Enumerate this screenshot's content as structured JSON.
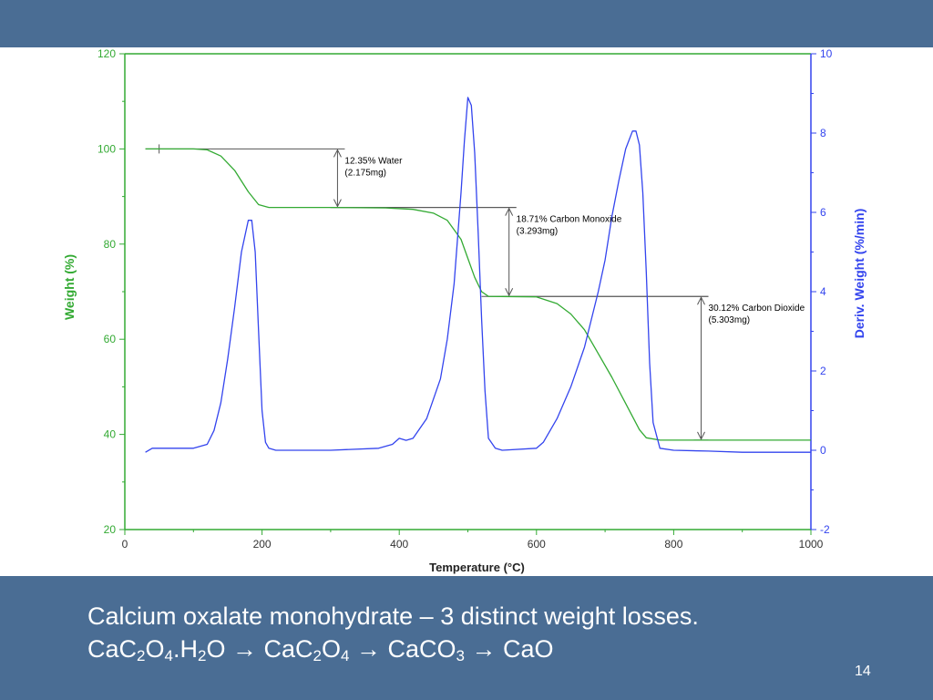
{
  "slide": {
    "caption_line1": "Calcium oxalate monohydrate – 3 distinct weight losses.",
    "formula_parts": [
      "CaC",
      "2",
      "O",
      "4",
      ".H",
      "2",
      "O ",
      "→",
      " CaC",
      "2",
      "O",
      "4",
      " ",
      "→",
      " CaCO",
      "3",
      " ",
      "→",
      " CaO"
    ],
    "slide_number": "14",
    "colors": {
      "band": "#4a6d94",
      "text": "#ffffff"
    }
  },
  "chart_data": {
    "type": "line",
    "title": "",
    "xlabel": "Temperature (°C)",
    "ylabel_left": "Weight (%)",
    "ylabel_right": "Deriv. Weight (%/min)",
    "xlim": [
      0,
      1000
    ],
    "ylim_left": [
      20,
      120
    ],
    "ylim_right": [
      -2,
      10
    ],
    "x_ticks": [
      "0",
      "200",
      "400",
      "600",
      "800",
      "1000"
    ],
    "y_left_ticks": [
      "20",
      "40",
      "60",
      "80",
      "100",
      "120"
    ],
    "y_right_ticks": [
      "-2",
      "0",
      "2",
      "4",
      "6",
      "8",
      "10"
    ],
    "grid": false,
    "colors": {
      "weight": "#33aa33",
      "deriv": "#3344ee",
      "axis_left": "#33aa33",
      "axis_right": "#3344ee",
      "annotation": "#000000"
    },
    "series": [
      {
        "name": "Weight (%)",
        "axis": "left",
        "x": [
          30,
          100,
          120,
          140,
          160,
          180,
          195,
          210,
          300,
          380,
          420,
          450,
          470,
          490,
          500,
          510,
          520,
          530,
          600,
          630,
          650,
          670,
          690,
          710,
          730,
          750,
          760,
          780,
          1000
        ],
        "y": [
          100,
          100,
          99.8,
          98.5,
          95.5,
          91,
          88.3,
          87.7,
          87.7,
          87.6,
          87.3,
          86.5,
          85,
          81,
          77,
          73,
          70,
          69,
          68.9,
          67.5,
          65.3,
          62,
          57,
          52,
          46.5,
          41,
          39.3,
          38.8,
          38.8
        ]
      },
      {
        "name": "Deriv. Weight (%/min)",
        "axis": "right",
        "x": [
          30,
          40,
          50,
          100,
          120,
          130,
          140,
          150,
          160,
          170,
          180,
          185,
          190,
          195,
          200,
          205,
          210,
          220,
          300,
          370,
          390,
          400,
          410,
          420,
          440,
          460,
          470,
          480,
          490,
          495,
          500,
          505,
          510,
          515,
          520,
          525,
          530,
          540,
          550,
          600,
          610,
          630,
          650,
          670,
          690,
          700,
          710,
          720,
          730,
          740,
          745,
          750,
          755,
          760,
          765,
          770,
          780,
          800,
          850,
          900,
          1000
        ],
        "y": [
          -0.05,
          0.05,
          0.05,
          0.05,
          0.15,
          0.5,
          1.2,
          2.3,
          3.6,
          5,
          5.8,
          5.8,
          5,
          3,
          1,
          0.2,
          0.05,
          0,
          0,
          0.05,
          0.15,
          0.3,
          0.25,
          0.3,
          0.8,
          1.8,
          2.8,
          4.2,
          6.5,
          7.8,
          8.9,
          8.7,
          7.5,
          5.5,
          3.3,
          1.5,
          0.3,
          0.05,
          0,
          0.05,
          0.2,
          0.8,
          1.6,
          2.6,
          4,
          4.8,
          5.9,
          6.8,
          7.6,
          8.05,
          8.05,
          7.7,
          6.5,
          4.5,
          2.2,
          0.7,
          0.05,
          0,
          -0.02,
          -0.05,
          -0.05
        ]
      }
    ],
    "annotations": [
      {
        "label": "12.35% Water",
        "sub": "(2.175mg)",
        "x_arrow": 310,
        "y_top": 100,
        "y_bottom": 87.7,
        "line_top_from": 30,
        "line_bottom_to": 560
      },
      {
        "label": "18.71% Carbon Monoxide",
        "sub": "(3.293mg)",
        "x_arrow": 560,
        "y_top": 87.7,
        "y_bottom": 69,
        "line_top_from": 300,
        "line_bottom_to": 840
      },
      {
        "label": "30.12% Carbon Dioxide",
        "sub": "(5.303mg)",
        "x_arrow": 840,
        "y_top": 69,
        "y_bottom": 38.8,
        "line_top_from": 520,
        "line_bottom_to": 840
      }
    ]
  }
}
